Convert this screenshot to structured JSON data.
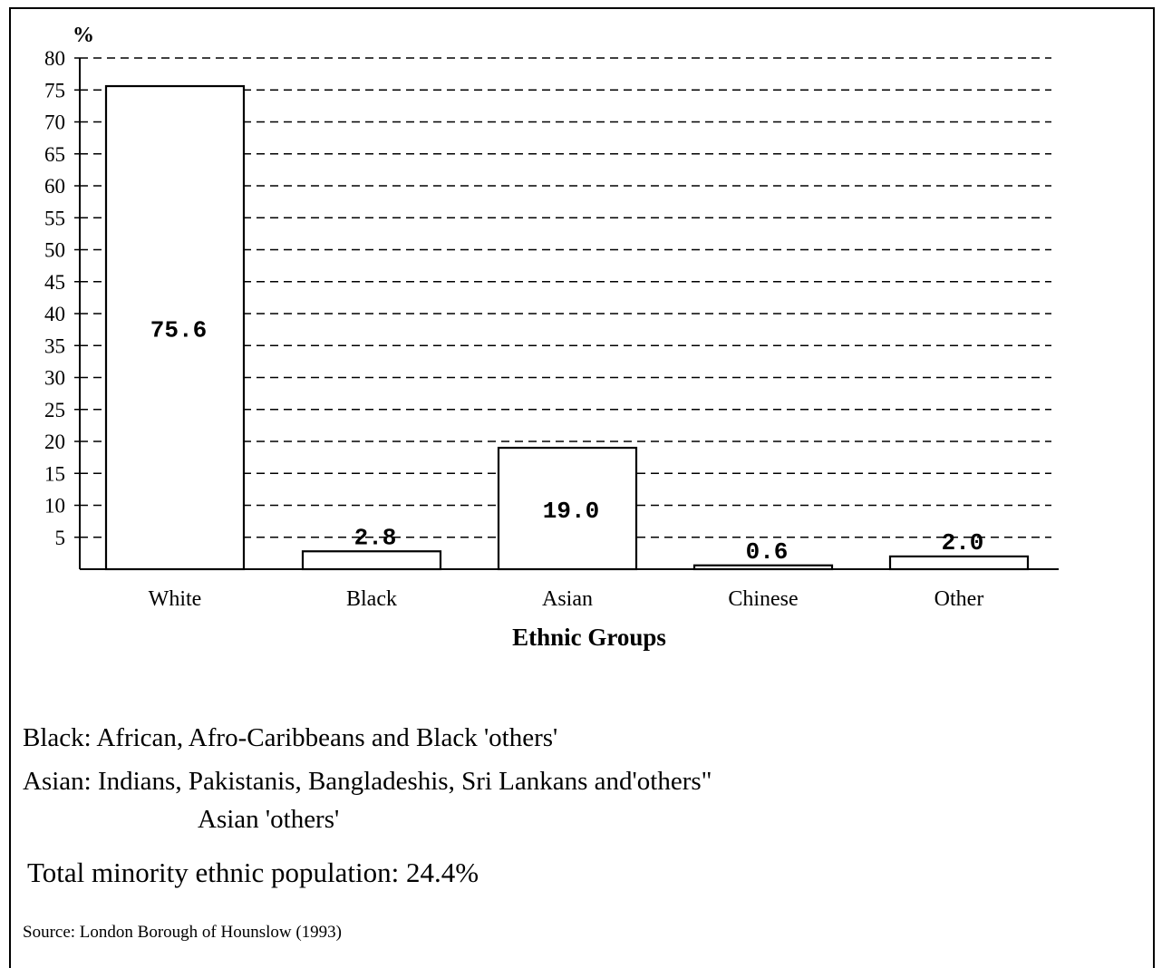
{
  "chart_data": {
    "type": "bar",
    "categories": [
      "White",
      "Black",
      "Asian",
      "Chinese",
      "Other"
    ],
    "values": [
      75.6,
      2.8,
      19.0,
      0.6,
      2.0
    ],
    "data_labels": [
      "75.6",
      "2.8",
      "19.0",
      "0.6",
      "2.0"
    ],
    "ylabel": "%",
    "xlabel": "Ethnic Groups",
    "ylim": [
      0,
      80
    ],
    "yticks": [
      80,
      75,
      70,
      65,
      60,
      55,
      50,
      45,
      40,
      35,
      30,
      25,
      20,
      15,
      10,
      5
    ],
    "grid": "dashed horizontal",
    "bar_fill": "#ffffff",
    "bar_stroke": "#000000"
  },
  "notes": {
    "black_def": "Black: African, Afro-Caribbeans and Black 'others'",
    "asian_def": "Asian: Indians, Pakistanis, Bangladeshis, Sri Lankans and'others\"",
    "asian_cont": "Asian 'others'",
    "total": "Total minority ethnic population: 24.4%",
    "source": "Source: London Borough of Hounslow (1993)"
  }
}
